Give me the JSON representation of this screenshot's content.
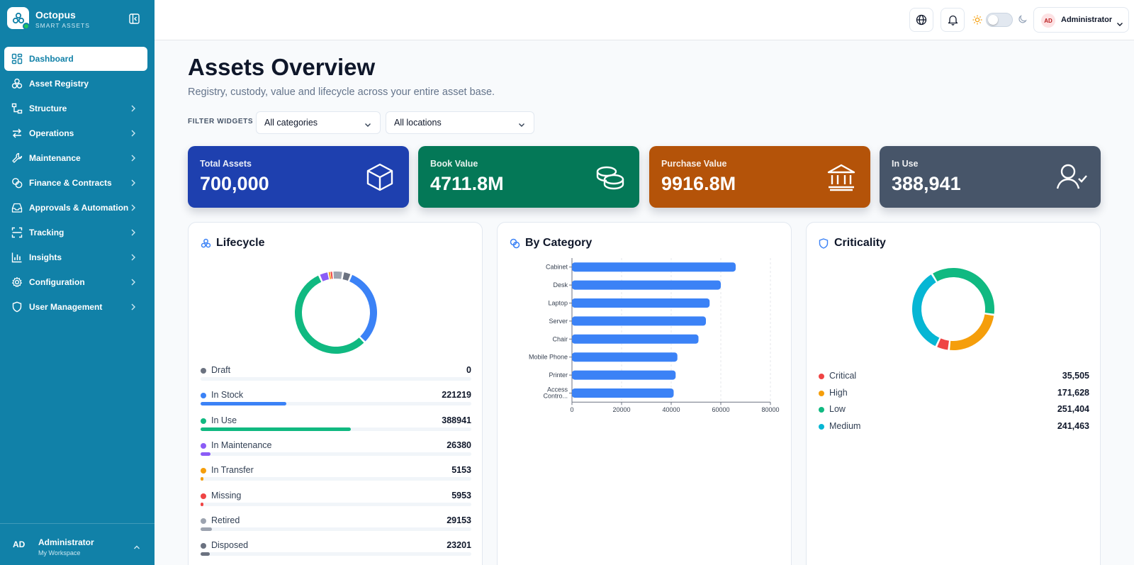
{
  "brand": {
    "name": "Octopus",
    "subtitle": "SMART ASSETS"
  },
  "sidebar": {
    "items": [
      {
        "label": "Dashboard",
        "icon": "dashboard-icon",
        "active": true,
        "chevron": false
      },
      {
        "label": "Asset Registry",
        "icon": "asset-registry-icon",
        "active": false,
        "chevron": false
      },
      {
        "label": "Structure",
        "icon": "structure-icon",
        "active": false,
        "chevron": true
      },
      {
        "label": "Operations",
        "icon": "operations-icon",
        "active": false,
        "chevron": true
      },
      {
        "label": "Maintenance",
        "icon": "wrench-icon",
        "active": false,
        "chevron": true
      },
      {
        "label": "Finance & Contracts",
        "icon": "coins-icon",
        "active": false,
        "chevron": true
      },
      {
        "label": "Approvals & Automation",
        "icon": "inbox-icon",
        "active": false,
        "chevron": true
      },
      {
        "label": "Tracking",
        "icon": "scan-icon",
        "active": false,
        "chevron": true
      },
      {
        "label": "Insights",
        "icon": "bar-chart-icon",
        "active": false,
        "chevron": true
      },
      {
        "label": "Configuration",
        "icon": "gear-icon",
        "active": false,
        "chevron": true
      },
      {
        "label": "User Management",
        "icon": "shield-icon",
        "active": false,
        "chevron": true
      }
    ],
    "footer": {
      "initials": "AD",
      "name": "Administrator",
      "workspace": "My Workspace"
    }
  },
  "topbar": {
    "user": {
      "initials": "AD",
      "name": "Administrator"
    }
  },
  "header": {
    "title": "Assets Overview",
    "subtitle": "Registry, custody, value and lifecycle across your entire asset base."
  },
  "filters": {
    "label": "FILTER WIDGETS",
    "category": "All categories",
    "location": "All locations"
  },
  "kpis": [
    {
      "label": "Total Assets",
      "value": "700,000",
      "color": "#1e40af",
      "icon": "cube-icon"
    },
    {
      "label": "Book Value",
      "value": "4711.8M",
      "color": "#047857",
      "icon": "coins-icon"
    },
    {
      "label": "Purchase Value",
      "value": "9916.8M",
      "color": "#b45309",
      "icon": "bank-icon"
    },
    {
      "label": "In Use",
      "value": "388,941",
      "color": "#475569",
      "icon": "user-check-icon"
    }
  ],
  "lifecycle": {
    "title": "Lifecycle",
    "total": 700000,
    "rows": [
      {
        "name": "Draft",
        "value": "0",
        "color": "#6b7280"
      },
      {
        "name": "In Stock",
        "value": "221219",
        "color": "#3b82f6"
      },
      {
        "name": "In Use",
        "value": "388941",
        "color": "#10b981"
      },
      {
        "name": "In Maintenance",
        "value": "26380",
        "color": "#8b5cf6"
      },
      {
        "name": "In Transfer",
        "value": "5153",
        "color": "#f59e0b"
      },
      {
        "name": "Missing",
        "value": "5953",
        "color": "#ef4444"
      },
      {
        "name": "Retired",
        "value": "29153",
        "color": "#9ca3af"
      },
      {
        "name": "Disposed",
        "value": "23201",
        "color": "#6b7280"
      }
    ]
  },
  "category": {
    "title": "By Category"
  },
  "criticality": {
    "title": "Criticality",
    "rows": [
      {
        "name": "Critical",
        "value": "35,505",
        "color": "#ef4444"
      },
      {
        "name": "High",
        "value": "171,628",
        "color": "#f59e0b"
      },
      {
        "name": "Low",
        "value": "251,404",
        "color": "#10b981"
      },
      {
        "name": "Medium",
        "value": "241,463",
        "color": "#06b6d4"
      }
    ]
  },
  "chart_data": [
    {
      "type": "pie",
      "title": "Lifecycle",
      "categories": [
        "Draft",
        "In Stock",
        "In Use",
        "In Maintenance",
        "In Transfer",
        "Missing",
        "Retired",
        "Disposed"
      ],
      "values": [
        0,
        221219,
        388941,
        26380,
        5153,
        5953,
        29153,
        23201
      ],
      "colors": [
        "#6b7280",
        "#3b82f6",
        "#10b981",
        "#8b5cf6",
        "#f59e0b",
        "#ef4444",
        "#9ca3af",
        "#6b7280"
      ],
      "start_angle_deg": -68
    },
    {
      "type": "bar",
      "orientation": "horizontal",
      "title": "By Category",
      "categories": [
        "Cabinet",
        "Desk",
        "Laptop",
        "Server",
        "Chair",
        "Mobile Phone",
        "Printer",
        "Access Contro..."
      ],
      "values": [
        66000,
        60000,
        55500,
        54000,
        51000,
        42500,
        41800,
        41000
      ],
      "xlim": [
        0,
        80000
      ],
      "xticks": [
        0,
        20000,
        40000,
        60000,
        80000
      ],
      "grid": true,
      "color": "#3b82f6"
    },
    {
      "type": "pie",
      "title": "Criticality",
      "categories": [
        "High",
        "Critical",
        "Medium",
        "Low"
      ],
      "values": [
        171628,
        35505,
        241463,
        251404
      ],
      "colors": [
        "#f59e0b",
        "#ef4444",
        "#06b6d4",
        "#10b981"
      ],
      "start_angle_deg": 8
    }
  ]
}
